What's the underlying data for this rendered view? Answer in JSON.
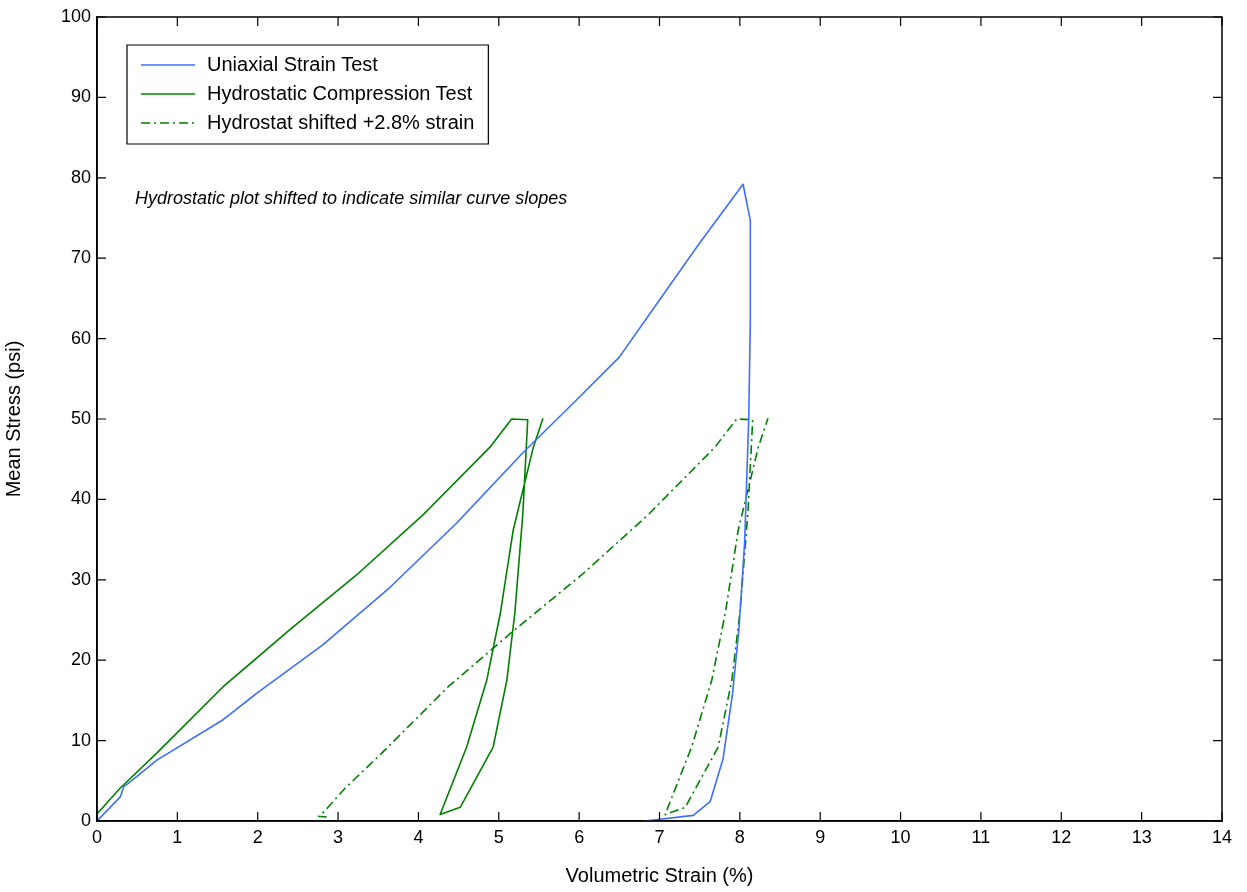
{
  "chart_data": {
    "type": "line",
    "xlabel": "Volumetric Strain (%)",
    "ylabel": "Mean Stress (psi)",
    "xlim": [
      0,
      14
    ],
    "ylim": [
      0,
      100
    ],
    "xticks": [
      0,
      1,
      2,
      3,
      4,
      5,
      6,
      7,
      8,
      9,
      10,
      11,
      12,
      13,
      14
    ],
    "yticks": [
      0,
      10,
      20,
      30,
      40,
      50,
      60,
      70,
      80,
      90,
      100
    ],
    "grid": false,
    "legend": "top left",
    "marker": "none",
    "annotations": [
      "Hydrostatic plot shifted to indicate similar curve slopes"
    ],
    "series": [
      {
        "name": "Uniaxial Strain Test",
        "color": "#3c6eff",
        "line_style": "solid",
        "x": [
          0,
          0.29,
          0.33,
          0.75,
          1.57,
          1.99,
          2.81,
          3.65,
          4.48,
          5.3,
          5.97,
          6.5,
          7.0,
          7.5,
          8.04,
          8.13,
          8.13,
          8.11,
          8.06,
          7.99,
          7.91,
          7.79,
          7.63,
          7.42,
          6.82
        ],
        "values": [
          0,
          3,
          4.2,
          7.6,
          12.6,
          15.9,
          21.9,
          29.1,
          37.1,
          45.8,
          52.4,
          57.7,
          64.8,
          71.9,
          79.2,
          74.7,
          61.8,
          49.9,
          34.8,
          24,
          15.9,
          7.7,
          2.4,
          0.7,
          0
        ]
      },
      {
        "name": "Hydrostatic Compression Test",
        "color": "#008000",
        "line_style": "solid",
        "x": [
          0.01,
          0.29,
          0.75,
          1.57,
          2.4,
          3.23,
          4.06,
          4.89,
          5.16,
          5.36,
          5.3,
          5.2,
          5.1,
          4.93,
          4.52,
          4.27,
          4.6,
          4.85,
          5.02,
          5.18,
          5.43,
          5.55
        ],
        "values": [
          1,
          4.1,
          8.5,
          16.7,
          23.8,
          30.6,
          38.1,
          46.5,
          50,
          49.9,
          38.3,
          25.9,
          17.5,
          9.2,
          1.7,
          0.8,
          9.2,
          17.5,
          25.9,
          36.2,
          46.5,
          50.1
        ]
      },
      {
        "name": "Hydrostat shifted +2.8% strain",
        "color": "#008000",
        "line_style": "dashed",
        "x": [
          2.75,
          2.85,
          2.81,
          3.09,
          3.55,
          4.37,
          5.2,
          6.03,
          6.86,
          7.69,
          7.96,
          8.16,
          8.1,
          8.0,
          7.9,
          7.73,
          7.32,
          7.07,
          7.4,
          7.65,
          7.82,
          7.98,
          8.23,
          8.35
        ],
        "values": [
          0.6,
          0.5,
          1,
          4.1,
          8.5,
          16.7,
          23.8,
          30.6,
          38.1,
          46.5,
          50,
          49.9,
          38.3,
          25.9,
          17.5,
          9.2,
          1.7,
          0.8,
          9.2,
          17.5,
          25.9,
          36.2,
          46.5,
          50.1
        ]
      }
    ]
  }
}
